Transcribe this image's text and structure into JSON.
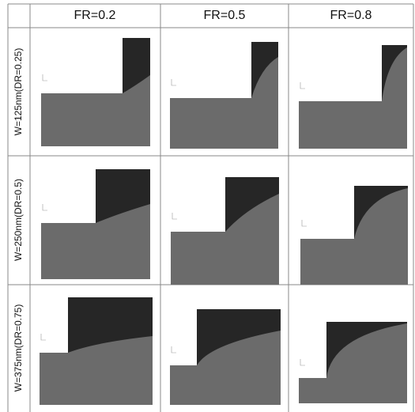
{
  "header": {
    "columns": [
      "FR=0.2",
      "FR=0.5",
      "FR=0.8"
    ]
  },
  "rows": [
    {
      "label": "W=125nm(DR=0.25)"
    },
    {
      "label": "W=250nm(DR=0.5)"
    },
    {
      "label": "W=375nm(DR=0.75)"
    }
  ]
}
